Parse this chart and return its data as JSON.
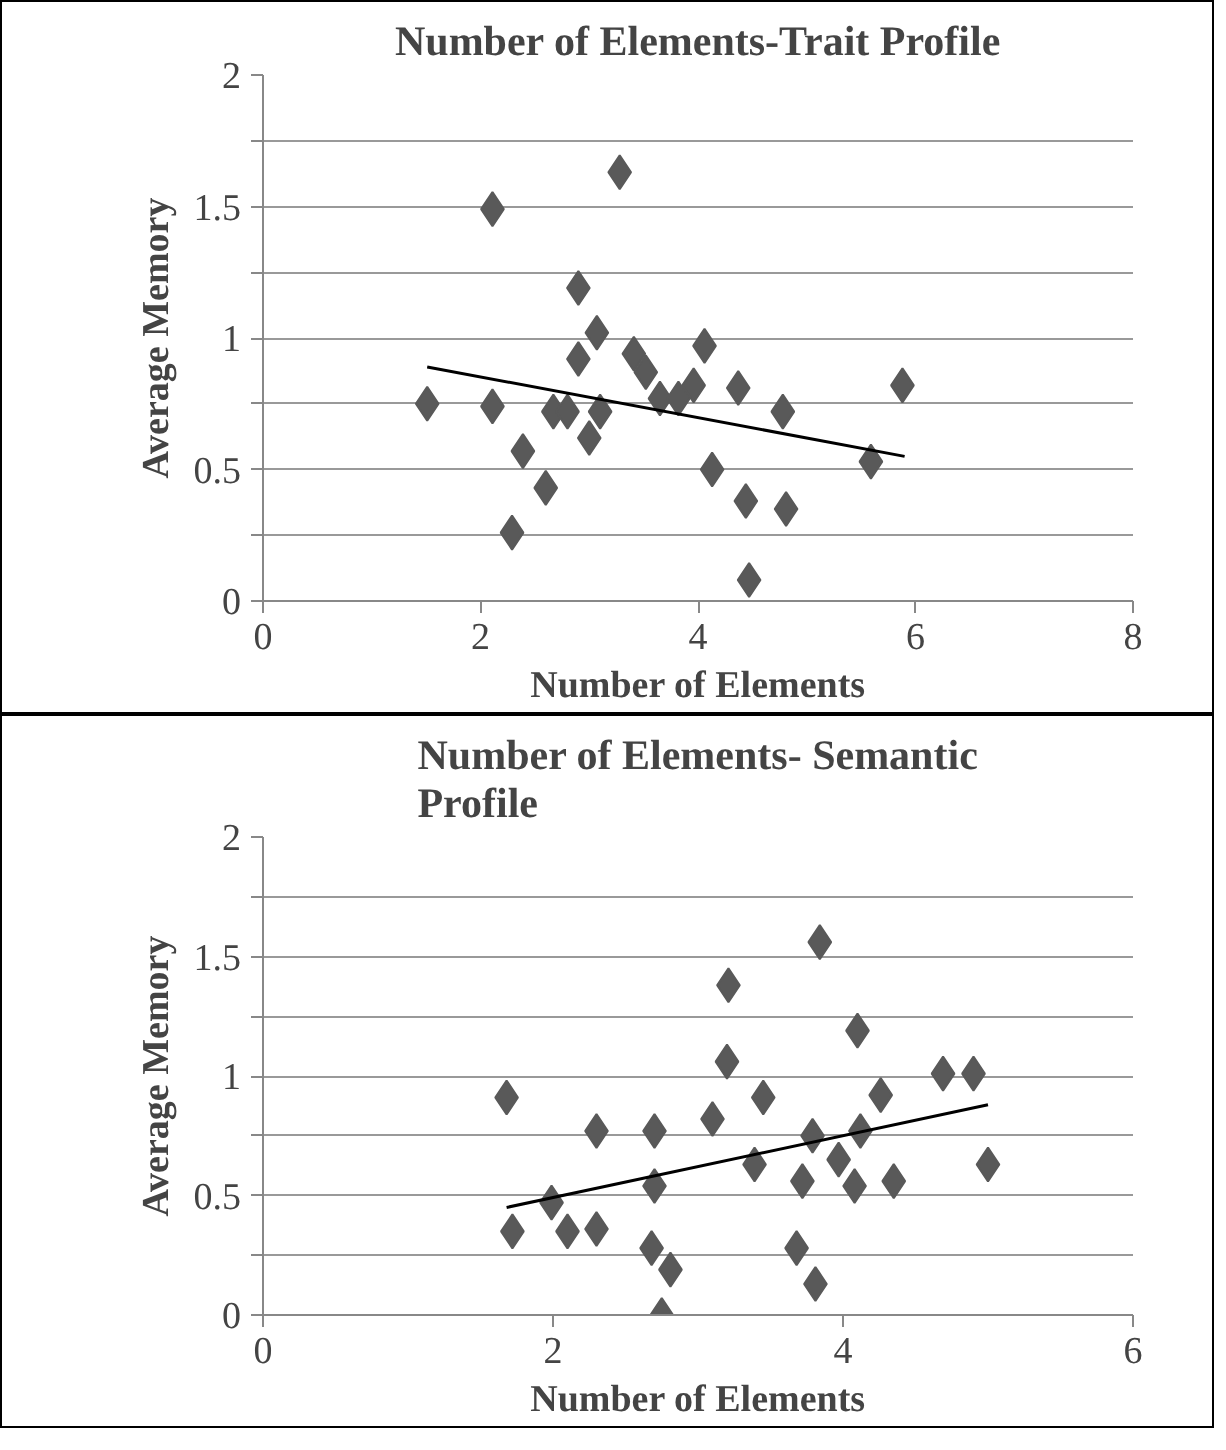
{
  "chart_data": [
    {
      "type": "scatter",
      "title": "Number of Elements-Trait Profile",
      "xlabel": "Number of Elements",
      "ylabel": "Average Memory",
      "marker": "diamond",
      "grid": "y",
      "xlim": [
        0,
        8
      ],
      "xticks": [
        0,
        2,
        4,
        6,
        8
      ],
      "ylim": [
        0,
        2
      ],
      "yticks": [
        0,
        {
          "value": 0.25,
          "label": null
        },
        0.5,
        {
          "value": 0.75,
          "label": null
        },
        1,
        {
          "value": 1.25,
          "label": null
        },
        1.5,
        {
          "value": 1.75,
          "label": null
        },
        2
      ],
      "series": [
        {
          "color": "#595959",
          "x": [
            1.51,
            2.11,
            2.11,
            2.29,
            2.39,
            2.6,
            2.9,
            2.9,
            2.67,
            3.0,
            3.1,
            3.28,
            3.07,
            3.41,
            3.52,
            3.65,
            3.82,
            3.96,
            4.06,
            4.13,
            4.37,
            4.44,
            4.47,
            4.78,
            4.81,
            5.59,
            5.88,
            2.8
          ],
          "values": [
            0.75,
            1.49,
            0.74,
            0.26,
            0.57,
            0.43,
            1.19,
            0.92,
            0.72,
            0.62,
            0.72,
            1.63,
            1.02,
            0.94,
            0.87,
            0.77,
            0.77,
            0.82,
            0.97,
            0.5,
            0.81,
            0.38,
            0.08,
            0.72,
            0.35,
            0.53,
            0.82,
            0.72
          ]
        },
        {
          "type": "line",
          "color": "#000000",
          "marker": "none",
          "x": [
            1.51,
            5.9
          ],
          "values": [
            0.89,
            0.55
          ]
        }
      ]
    },
    {
      "type": "scatter",
      "title": "Number of Elements- Semantic Profile",
      "xlabel": "Number of Elements",
      "ylabel": "Average Memory",
      "marker": "diamond",
      "grid": "y",
      "xlim": [
        0,
        6
      ],
      "xticks": [
        0,
        2,
        4,
        6
      ],
      "ylim": [
        0,
        2
      ],
      "yticks": [
        0,
        {
          "value": 0.25,
          "label": null
        },
        0.5,
        {
          "value": 0.75,
          "label": null
        },
        1,
        {
          "value": 1.25,
          "label": null
        },
        1.5,
        {
          "value": 1.75,
          "label": null
        },
        2
      ],
      "series": [
        {
          "color": "#595959",
          "x": [
            1.68,
            1.72,
            1.99,
            2.1,
            2.3,
            2.3,
            2.7,
            2.7,
            2.68,
            2.81,
            2.75,
            3.1,
            3.21,
            3.2,
            3.45,
            3.39,
            3.68,
            3.81,
            3.84,
            3.72,
            3.79,
            3.97,
            4.08,
            4.1,
            4.12,
            4.26,
            4.35,
            4.69,
            4.9,
            5.0
          ],
          "values": [
            0.91,
            0.35,
            0.47,
            0.35,
            0.77,
            0.36,
            0.77,
            0.54,
            0.28,
            0.19,
            0.0,
            0.82,
            1.38,
            1.06,
            0.91,
            0.63,
            0.28,
            0.13,
            1.56,
            0.56,
            0.75,
            0.65,
            0.54,
            1.19,
            0.77,
            0.92,
            0.56,
            1.01,
            1.01,
            0.63
          ]
        },
        {
          "type": "line",
          "color": "#000000",
          "marker": "none",
          "x": [
            1.68,
            5.0
          ],
          "values": [
            0.45,
            0.88
          ]
        }
      ]
    }
  ]
}
